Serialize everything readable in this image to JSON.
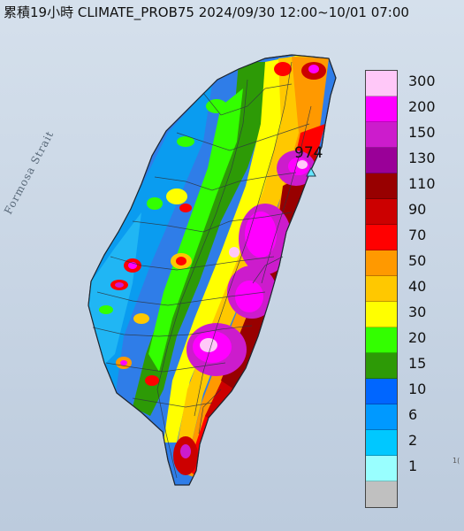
{
  "title": "累積19小時 CLIMATE_PROB75 2024/09/30 12:00~10/01 07:00",
  "sea_label": "Formosa Strait",
  "max_station": {
    "value": "974",
    "marker": "triangle-marker-icon"
  },
  "corner_text": "1(",
  "legend": {
    "items": [
      {
        "label": "300",
        "color": "#ffc8f8"
      },
      {
        "label": "200",
        "color": "#ff00ff"
      },
      {
        "label": "150",
        "color": "#cc1ccc"
      },
      {
        "label": "130",
        "color": "#9a0098"
      },
      {
        "label": "110",
        "color": "#980000"
      },
      {
        "label": "90",
        "color": "#cc0000"
      },
      {
        "label": "70",
        "color": "#ff0000"
      },
      {
        "label": "50",
        "color": "#ff9900"
      },
      {
        "label": "40",
        "color": "#ffc800"
      },
      {
        "label": "30",
        "color": "#ffff00"
      },
      {
        "label": "20",
        "color": "#33ff00"
      },
      {
        "label": "15",
        "color": "#2d9a06"
      },
      {
        "label": "10",
        "color": "#0066ff"
      },
      {
        "label": "6",
        "color": "#0099ff"
      },
      {
        "label": "2",
        "color": "#00c8ff"
      },
      {
        "label": "1",
        "color": "#99ffff"
      },
      {
        "label": "",
        "color": "#c0c0c0"
      }
    ]
  }
}
